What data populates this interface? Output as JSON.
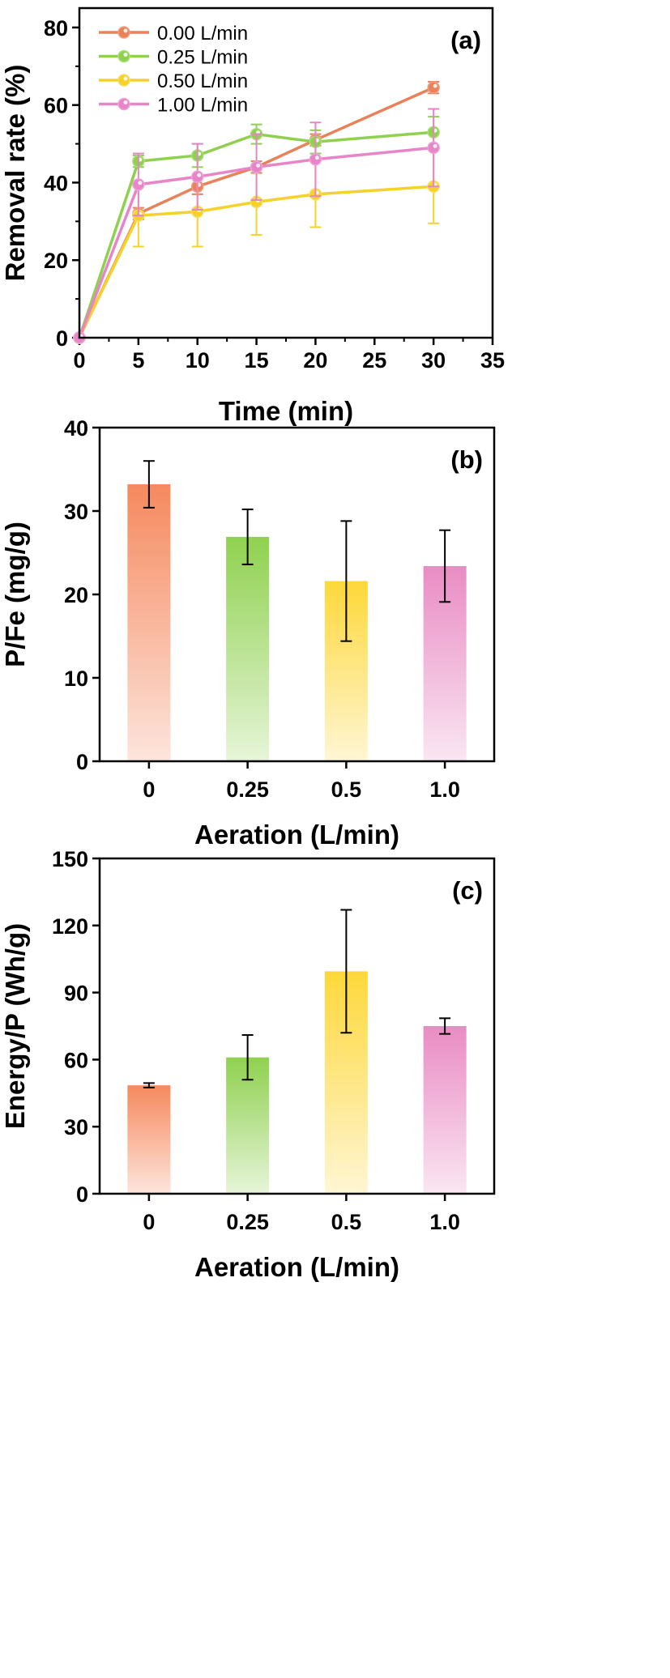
{
  "chart_data": [
    {
      "type": "line",
      "panel_label": "(a)",
      "xlabel": "Time (min)",
      "ylabel": "Removal rate (%)",
      "xlim": [
        0,
        35
      ],
      "ylim": [
        0,
        85
      ],
      "xticks": [
        "0",
        "5",
        "10",
        "15",
        "20",
        "25",
        "30",
        "35"
      ],
      "yticks": [
        "0",
        "20",
        "40",
        "60",
        "80"
      ],
      "x": [
        0,
        5,
        10,
        15,
        20,
        30
      ],
      "legend_position": "top-left",
      "series": [
        {
          "name": "0.00 L/min",
          "color": "#e8825a",
          "values": [
            0,
            32.0,
            39.0,
            44.0,
            51.0,
            64.5
          ],
          "errors": [
            0,
            1.5,
            2.0,
            1.5,
            1.5,
            1.5
          ]
        },
        {
          "name": "0.25 L/min",
          "color": "#8fd14f",
          "values": [
            0,
            45.5,
            47.0,
            52.5,
            50.5,
            53.0
          ],
          "errors": [
            0,
            1.5,
            3.0,
            2.5,
            3.0,
            4.0
          ]
        },
        {
          "name": "0.50 L/min",
          "color": "#f5d22a",
          "values": [
            0,
            31.5,
            32.5,
            35.0,
            37.0,
            39.0
          ],
          "errors": [
            0,
            8.0,
            9.0,
            8.5,
            8.5,
            9.5
          ]
        },
        {
          "name": "1.00 L/min",
          "color": "#e785c8",
          "values": [
            0,
            39.5,
            41.5,
            44.0,
            46.0,
            49.0
          ],
          "errors": [
            0,
            8.0,
            8.5,
            8.5,
            9.5,
            10.0
          ]
        }
      ]
    },
    {
      "type": "bar",
      "panel_label": "(b)",
      "xlabel": "Aeration (L/min)",
      "ylabel": "P/Fe (mg/g)",
      "ylim": [
        0,
        40
      ],
      "yticks": [
        "0",
        "10",
        "20",
        "30",
        "40"
      ],
      "categories": [
        "0",
        "0.25",
        "0.5",
        "1.0"
      ],
      "values": [
        33.2,
        26.9,
        21.6,
        23.4
      ],
      "errors": [
        2.8,
        3.3,
        7.2,
        4.3
      ],
      "colors": [
        "#f5895e",
        "#8fd14f",
        "#fdd83a",
        "#e98cc4"
      ]
    },
    {
      "type": "bar",
      "panel_label": "(c)",
      "xlabel": "Aeration (L/min)",
      "ylabel": "Energy/P (Wh/g)",
      "ylim": [
        0,
        150
      ],
      "yticks": [
        "0",
        "30",
        "60",
        "90",
        "120",
        "150"
      ],
      "categories": [
        "0",
        "0.25",
        "0.5",
        "1.0"
      ],
      "values": [
        48.5,
        61.0,
        99.5,
        75.0
      ],
      "errors": [
        1.0,
        10.0,
        27.5,
        3.5
      ],
      "colors": [
        "#f5895e",
        "#8fd14f",
        "#fdd83a",
        "#e98cc4"
      ]
    }
  ]
}
